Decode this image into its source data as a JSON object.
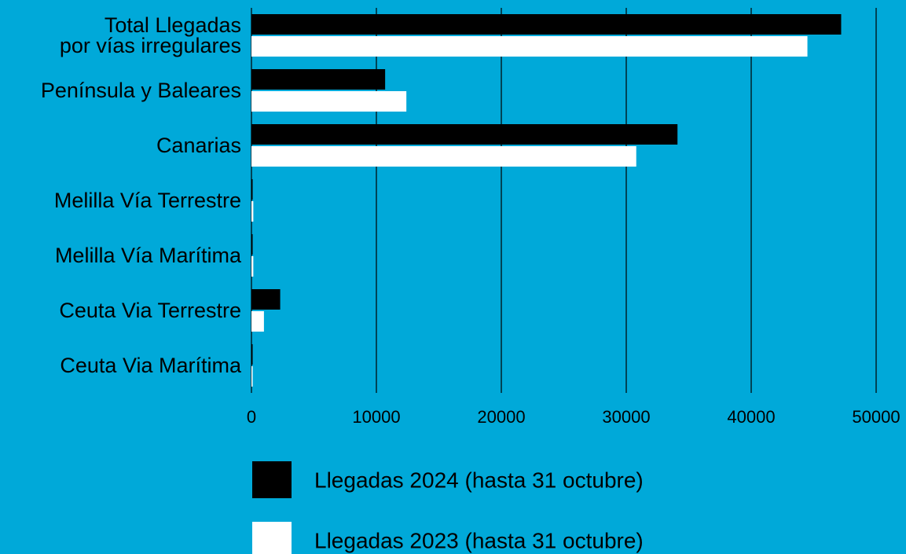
{
  "chart_data": {
    "type": "barh",
    "categories": [
      "Total Llegadas\npor vías irregulares",
      "Península y Baleares",
      "Canarias",
      "Melilla Vía Terrestre",
      "Melilla Vía Marítima",
      "Ceuta Via Terrestre",
      "Ceuta Via Marítima"
    ],
    "series": [
      {
        "name": "Llegadas 2024 (hasta 31 octubre)",
        "color": "#000000",
        "values": [
          47200,
          10700,
          34100,
          30,
          20,
          2300,
          50
        ]
      },
      {
        "name": "Llegadas 2023 (hasta 31 octubre)",
        "color": "#ffffff",
        "values": [
          44500,
          12400,
          30800,
          150,
          150,
          1000,
          80
        ]
      }
    ],
    "xlim": [
      0,
      50000
    ],
    "xticks": [
      0,
      10000,
      20000,
      30000,
      40000,
      50000
    ],
    "grid": true
  }
}
